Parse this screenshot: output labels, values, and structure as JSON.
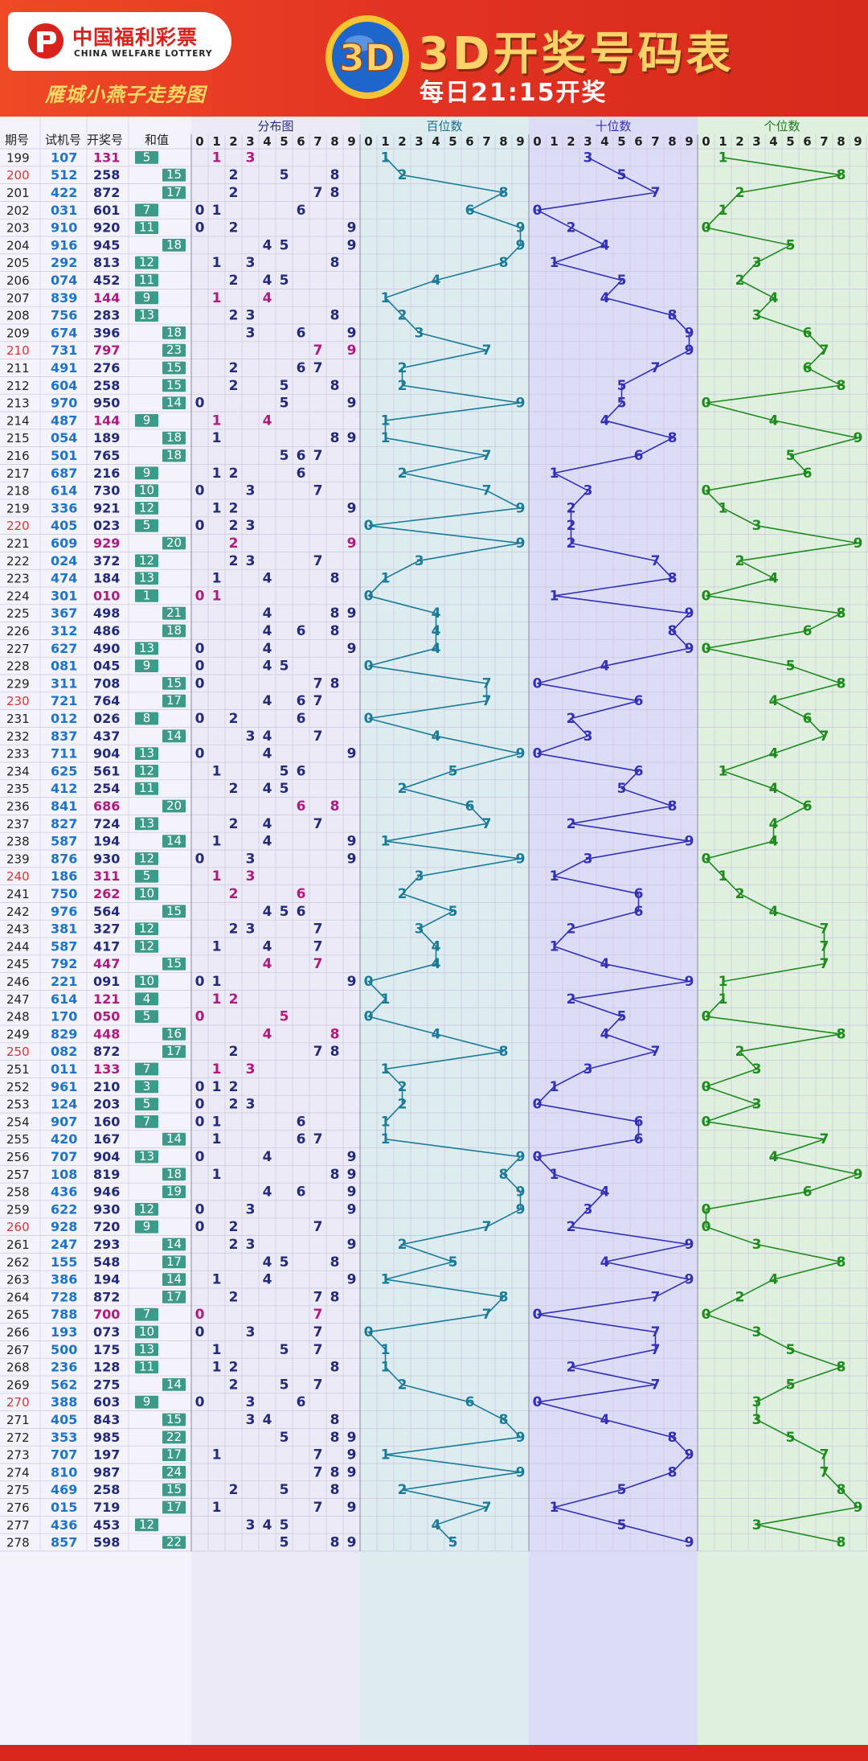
{
  "header": {
    "logo_cn": "中国福利彩票",
    "logo_en": "CHINA WELFARE LOTTERY",
    "brand": "雁城小燕子走势图",
    "title": "3D开奖号码表",
    "subtitle": "每日21:15开奖"
  },
  "columns": {
    "period": "期号",
    "trial": "试机号",
    "draw": "开奖号",
    "sum": "和值",
    "distribution": "分布图",
    "hundreds": "百位数",
    "tens": "十位数",
    "units": "个位数",
    "digits": [
      "0",
      "1",
      "2",
      "3",
      "4",
      "5",
      "6",
      "7",
      "8",
      "9"
    ]
  },
  "colors": {
    "header_bg": "#e23322",
    "title_gold": "#ffd36a",
    "period_red": "#d33636",
    "trial_blue": "#1d74c9",
    "draw_navy": "#232a7a",
    "draw_repeat_magenta": "#b0197f",
    "sum_badge": "#3d9a89",
    "hundreds_line": "#1c7a99",
    "tens_line": "#3330b8",
    "units_line": "#1f8a1f"
  },
  "chart_data": {
    "type": "table",
    "rows": [
      {
        "period": "199",
        "trial": "107",
        "draw": "131",
        "sum": 5
      },
      {
        "period": "200",
        "trial": "512",
        "draw": "258",
        "sum": 15
      },
      {
        "period": "201",
        "trial": "422",
        "draw": "872",
        "sum": 17
      },
      {
        "period": "202",
        "trial": "031",
        "draw": "601",
        "sum": 7
      },
      {
        "period": "203",
        "trial": "910",
        "draw": "920",
        "sum": 11
      },
      {
        "period": "204",
        "trial": "916",
        "draw": "945",
        "sum": 18
      },
      {
        "period": "205",
        "trial": "292",
        "draw": "813",
        "sum": 12
      },
      {
        "period": "206",
        "trial": "074",
        "draw": "452",
        "sum": 11
      },
      {
        "period": "207",
        "trial": "839",
        "draw": "144",
        "sum": 9
      },
      {
        "period": "208",
        "trial": "756",
        "draw": "283",
        "sum": 13
      },
      {
        "period": "209",
        "trial": "674",
        "draw": "396",
        "sum": 18
      },
      {
        "period": "210",
        "trial": "731",
        "draw": "797",
        "sum": 23
      },
      {
        "period": "211",
        "trial": "491",
        "draw": "276",
        "sum": 15
      },
      {
        "period": "212",
        "trial": "604",
        "draw": "258",
        "sum": 15
      },
      {
        "period": "213",
        "trial": "970",
        "draw": "950",
        "sum": 14
      },
      {
        "period": "214",
        "trial": "487",
        "draw": "144",
        "sum": 9
      },
      {
        "period": "215",
        "trial": "054",
        "draw": "189",
        "sum": 18
      },
      {
        "period": "216",
        "trial": "501",
        "draw": "765",
        "sum": 18
      },
      {
        "period": "217",
        "trial": "687",
        "draw": "216",
        "sum": 9
      },
      {
        "period": "218",
        "trial": "614",
        "draw": "730",
        "sum": 10
      },
      {
        "period": "219",
        "trial": "336",
        "draw": "921",
        "sum": 12
      },
      {
        "period": "220",
        "trial": "405",
        "draw": "023",
        "sum": 5
      },
      {
        "period": "221",
        "trial": "609",
        "draw": "929",
        "sum": 20
      },
      {
        "period": "222",
        "trial": "024",
        "draw": "372",
        "sum": 12
      },
      {
        "period": "223",
        "trial": "474",
        "draw": "184",
        "sum": 13
      },
      {
        "period": "224",
        "trial": "301",
        "draw": "010",
        "sum": 1
      },
      {
        "period": "225",
        "trial": "367",
        "draw": "498",
        "sum": 21
      },
      {
        "period": "226",
        "trial": "312",
        "draw": "486",
        "sum": 18
      },
      {
        "period": "227",
        "trial": "627",
        "draw": "490",
        "sum": 13
      },
      {
        "period": "228",
        "trial": "081",
        "draw": "045",
        "sum": 9
      },
      {
        "period": "229",
        "trial": "311",
        "draw": "708",
        "sum": 15
      },
      {
        "period": "230",
        "trial": "721",
        "draw": "764",
        "sum": 17
      },
      {
        "period": "231",
        "trial": "012",
        "draw": "026",
        "sum": 8
      },
      {
        "period": "232",
        "trial": "837",
        "draw": "437",
        "sum": 14
      },
      {
        "period": "233",
        "trial": "711",
        "draw": "904",
        "sum": 13
      },
      {
        "period": "234",
        "trial": "625",
        "draw": "561",
        "sum": 12
      },
      {
        "period": "235",
        "trial": "412",
        "draw": "254",
        "sum": 11
      },
      {
        "period": "236",
        "trial": "841",
        "draw": "686",
        "sum": 20
      },
      {
        "period": "237",
        "trial": "827",
        "draw": "724",
        "sum": 13
      },
      {
        "period": "238",
        "trial": "587",
        "draw": "194",
        "sum": 14
      },
      {
        "period": "239",
        "trial": "876",
        "draw": "930",
        "sum": 12
      },
      {
        "period": "240",
        "trial": "186",
        "draw": "311",
        "sum": 5
      },
      {
        "period": "241",
        "trial": "750",
        "draw": "262",
        "sum": 10
      },
      {
        "period": "242",
        "trial": "976",
        "draw": "564",
        "sum": 15
      },
      {
        "period": "243",
        "trial": "381",
        "draw": "327",
        "sum": 12
      },
      {
        "period": "244",
        "trial": "587",
        "draw": "417",
        "sum": 12
      },
      {
        "period": "245",
        "trial": "792",
        "draw": "447",
        "sum": 15
      },
      {
        "period": "246",
        "trial": "221",
        "draw": "091",
        "sum": 10
      },
      {
        "period": "247",
        "trial": "614",
        "draw": "121",
        "sum": 4
      },
      {
        "period": "248",
        "trial": "170",
        "draw": "050",
        "sum": 5
      },
      {
        "period": "249",
        "trial": "829",
        "draw": "448",
        "sum": 16
      },
      {
        "period": "250",
        "trial": "082",
        "draw": "872",
        "sum": 17
      },
      {
        "period": "251",
        "trial": "011",
        "draw": "133",
        "sum": 7
      },
      {
        "period": "252",
        "trial": "961",
        "draw": "210",
        "sum": 3
      },
      {
        "period": "253",
        "trial": "124",
        "draw": "203",
        "sum": 5
      },
      {
        "period": "254",
        "trial": "907",
        "draw": "160",
        "sum": 7
      },
      {
        "period": "255",
        "trial": "420",
        "draw": "167",
        "sum": 14
      },
      {
        "period": "256",
        "trial": "707",
        "draw": "904",
        "sum": 13
      },
      {
        "period": "257",
        "trial": "108",
        "draw": "819",
        "sum": 18
      },
      {
        "period": "258",
        "trial": "436",
        "draw": "946",
        "sum": 19
      },
      {
        "period": "259",
        "trial": "622",
        "draw": "930",
        "sum": 12
      },
      {
        "period": "260",
        "trial": "928",
        "draw": "720",
        "sum": 9
      },
      {
        "period": "261",
        "trial": "247",
        "draw": "293",
        "sum": 14
      },
      {
        "period": "262",
        "trial": "155",
        "draw": "548",
        "sum": 17
      },
      {
        "period": "263",
        "trial": "386",
        "draw": "194",
        "sum": 14
      },
      {
        "period": "264",
        "trial": "728",
        "draw": "872",
        "sum": 17
      },
      {
        "period": "265",
        "trial": "788",
        "draw": "700",
        "sum": 7
      },
      {
        "period": "266",
        "trial": "193",
        "draw": "073",
        "sum": 10
      },
      {
        "period": "267",
        "trial": "500",
        "draw": "175",
        "sum": 13
      },
      {
        "period": "268",
        "trial": "236",
        "draw": "128",
        "sum": 11
      },
      {
        "period": "269",
        "trial": "562",
        "draw": "275",
        "sum": 14
      },
      {
        "period": "270",
        "trial": "388",
        "draw": "603",
        "sum": 9
      },
      {
        "period": "271",
        "trial": "405",
        "draw": "843",
        "sum": 15
      },
      {
        "period": "272",
        "trial": "353",
        "draw": "985",
        "sum": 22
      },
      {
        "period": "273",
        "trial": "707",
        "draw": "197",
        "sum": 17
      },
      {
        "period": "274",
        "trial": "810",
        "draw": "987",
        "sum": 24
      },
      {
        "period": "275",
        "trial": "469",
        "draw": "258",
        "sum": 15
      },
      {
        "period": "276",
        "trial": "015",
        "draw": "719",
        "sum": 17
      },
      {
        "period": "277",
        "trial": "436",
        "draw": "453",
        "sum": 12
      },
      {
        "period": "278",
        "trial": "857",
        "draw": "598",
        "sum": 22
      }
    ]
  }
}
